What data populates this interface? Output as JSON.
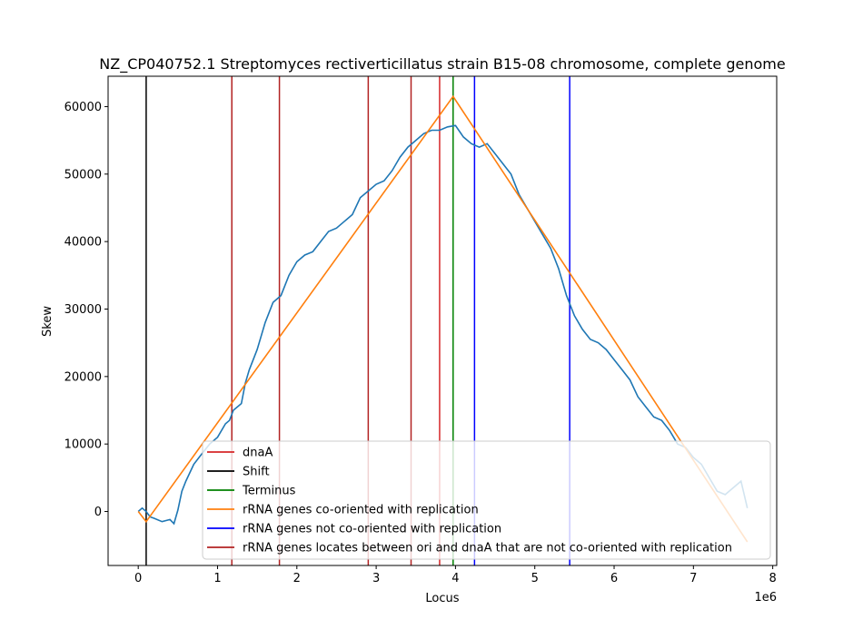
{
  "chart_data": {
    "type": "line",
    "title": "NZ_CP040752.1 Streptomyces rectiverticillatus strain B15-08 chromosome, complete genome",
    "xlabel": "Locus",
    "ylabel": "Skew",
    "x_offset_label": "1e6",
    "xlim": [
      -0.38,
      8.05
    ],
    "ylim": [
      -8000,
      64500
    ],
    "x_ticks": [
      0,
      1,
      2,
      3,
      4,
      5,
      6,
      7,
      8
    ],
    "y_ticks": [
      0,
      10000,
      20000,
      30000,
      40000,
      50000,
      60000
    ],
    "grid": false,
    "legend_position": "lower-right",
    "legend": [
      {
        "label": "dnaA",
        "color": "#d62728"
      },
      {
        "label": "Shift",
        "color": "#000000"
      },
      {
        "label": "Terminus",
        "color": "#008000"
      },
      {
        "label": "rRNA genes co-oriented with replication",
        "color": "#ff7f0e"
      },
      {
        "label": "rRNA genes not co-oriented with replication",
        "color": "#0000ff"
      },
      {
        "label": "rRNA genes locates between ori and dnaA that are not co-oriented with replication",
        "color": "#b22222"
      }
    ],
    "series": [
      {
        "name": "",
        "color": "#1f77b4",
        "x": [
          0.0,
          0.05,
          0.1,
          0.15,
          0.2,
          0.3,
          0.4,
          0.45,
          0.5,
          0.55,
          0.6,
          0.7,
          0.8,
          0.9,
          1.0,
          1.1,
          1.15,
          1.2,
          1.3,
          1.35,
          1.4,
          1.5,
          1.6,
          1.7,
          1.8,
          1.9,
          1.95,
          2.0,
          2.1,
          2.2,
          2.3,
          2.4,
          2.5,
          2.6,
          2.7,
          2.8,
          2.9,
          3.0,
          3.1,
          3.2,
          3.3,
          3.4,
          3.5,
          3.6,
          3.7,
          3.8,
          3.9,
          4.0,
          4.1,
          4.2,
          4.3,
          4.4,
          4.5,
          4.6,
          4.7,
          4.8,
          4.9,
          5.0,
          5.1,
          5.2,
          5.3,
          5.4,
          5.5,
          5.6,
          5.7,
          5.8,
          5.9,
          6.0,
          6.1,
          6.2,
          6.3,
          6.4,
          6.5,
          6.6,
          6.7,
          6.75,
          6.8,
          6.9,
          7.0,
          7.1,
          7.2,
          7.3,
          7.4,
          7.5,
          7.6,
          7.65,
          7.68
        ],
        "y": [
          0,
          500,
          0,
          -800,
          -1000,
          -1500,
          -1200,
          -1800,
          200,
          3000,
          4500,
          7000,
          8500,
          10000,
          11000,
          13000,
          13500,
          15000,
          16000,
          19000,
          21000,
          24000,
          28000,
          31000,
          32000,
          35000,
          36000,
          37000,
          38000,
          38500,
          40000,
          41500,
          42000,
          43000,
          44000,
          46500,
          47500,
          48500,
          49000,
          50500,
          52500,
          54000,
          55000,
          56000,
          56500,
          56500,
          57000,
          57200,
          55500,
          54500,
          54000,
          54500,
          53000,
          51500,
          50000,
          47000,
          45000,
          43000,
          41000,
          39000,
          36000,
          32000,
          29000,
          27000,
          25500,
          25000,
          24000,
          22500,
          21000,
          19500,
          17000,
          15500,
          14000,
          13500,
          12000,
          11000,
          10000,
          9500,
          8000,
          7000,
          5000,
          3000,
          2500,
          3500,
          4500,
          2000,
          500
        ]
      },
      {
        "name": "",
        "color": "#ff7f0e",
        "x": [
          0.0,
          0.1,
          3.97,
          7.68
        ],
        "y": [
          0,
          -1500,
          61500,
          -4500
        ]
      }
    ],
    "vertical_lines": [
      {
        "x": 0.1,
        "color": "#000000"
      },
      {
        "x": 1.18,
        "color": "#b22222"
      },
      {
        "x": 1.78,
        "color": "#b22222"
      },
      {
        "x": 2.9,
        "color": "#b22222"
      },
      {
        "x": 3.44,
        "color": "#b22222"
      },
      {
        "x": 3.8,
        "color": "#d62728"
      },
      {
        "x": 3.97,
        "color": "#008000"
      },
      {
        "x": 4.24,
        "color": "#0000ff"
      },
      {
        "x": 5.44,
        "color": "#0000ff"
      }
    ]
  }
}
